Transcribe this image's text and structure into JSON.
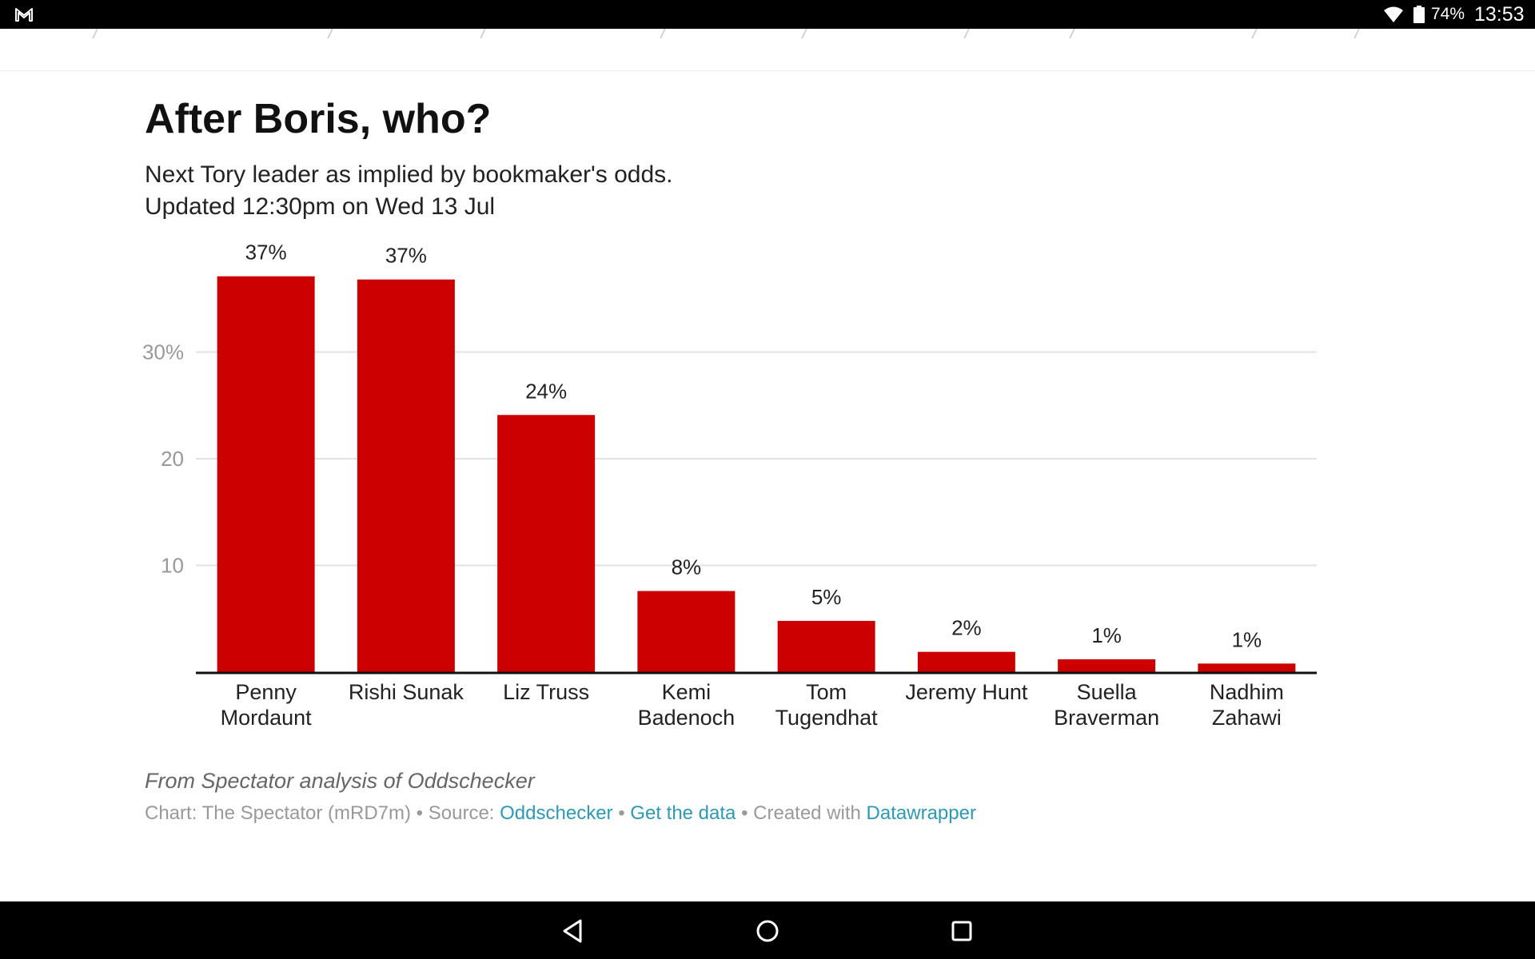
{
  "status_bar": {
    "battery": "74%",
    "time": "13:53",
    "icons": [
      "gmail-icon",
      "wifi-icon",
      "battery-icon"
    ]
  },
  "nav_bar": {
    "icons": [
      "back-icon",
      "home-icon",
      "recents-icon"
    ]
  },
  "colors": {
    "bar": "#cc0000",
    "link": "#2c9ab7"
  },
  "chart_data": {
    "type": "bar",
    "title": "After Boris, who?",
    "subtitle": [
      "Next Tory leader as implied by bookmaker's odds.",
      "Updated 12:30pm on Wed 13 Jul"
    ],
    "categories": [
      [
        "Penny",
        "Mordaunt"
      ],
      [
        "Rishi Sunak"
      ],
      [
        "Liz Truss"
      ],
      [
        "Kemi",
        "Badenoch"
      ],
      [
        "Tom",
        "Tugendhat"
      ],
      [
        "Jeremy Hunt"
      ],
      [
        "Suella",
        "Braverman"
      ],
      [
        "Nadhim",
        "Zahawi"
      ]
    ],
    "values": [
      37.1,
      36.8,
      24.1,
      7.6,
      4.8,
      1.9,
      1.2,
      0.8
    ],
    "value_labels": [
      "37%",
      "37%",
      "24%",
      "8%",
      "5%",
      "2%",
      "1%",
      "1%"
    ],
    "yticks": [
      {
        "value": 10,
        "label": "10"
      },
      {
        "value": 20,
        "label": "20"
      },
      {
        "value": 30,
        "label": "30%"
      }
    ],
    "ylim": [
      0,
      40
    ],
    "xlabel": "",
    "ylabel": "",
    "grid": true,
    "notes": "From Spectator analysis of Oddschecker",
    "footer": {
      "chart_credit": "Chart: The Spectator (mRD7m)",
      "sep": "•",
      "source_label": "Source:",
      "source_link": "Oddschecker",
      "data_link": "Get the data",
      "created_label": "Created with",
      "tool_link": "Datawrapper"
    }
  }
}
